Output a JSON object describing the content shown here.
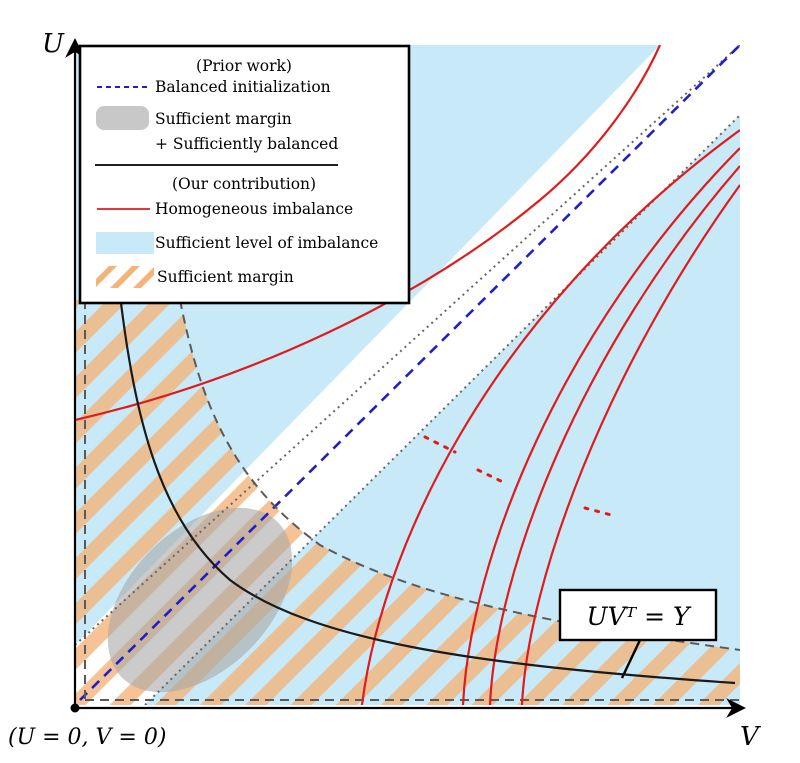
{
  "axes": {
    "u_label": "U",
    "v_label": "V",
    "origin_label": "(U = 0, V = 0)"
  },
  "curve_label": "UVᵀ = Y",
  "legend": {
    "prior_heading": "(Prior work)",
    "balanced_init": "Balanced initialization",
    "margin_balanced_line1": "Sufficient margin",
    "margin_balanced_line2": "+ Sufficiently balanced",
    "our_heading": "(Our contribution)",
    "homogeneous": "Homogeneous imbalance",
    "imbalance_level": "Sufficient level of imbalance",
    "margin": "Sufficient margin"
  },
  "colors": {
    "imbalance_region": "#c8e9f8",
    "margin_hatch": "#f3b47a",
    "balanced_line": "#1f1fc8",
    "homogeneous_curve": "#e01b1b",
    "gray_region": "#a9a9a9",
    "dashed_boundary": "#5a5a5a"
  }
}
